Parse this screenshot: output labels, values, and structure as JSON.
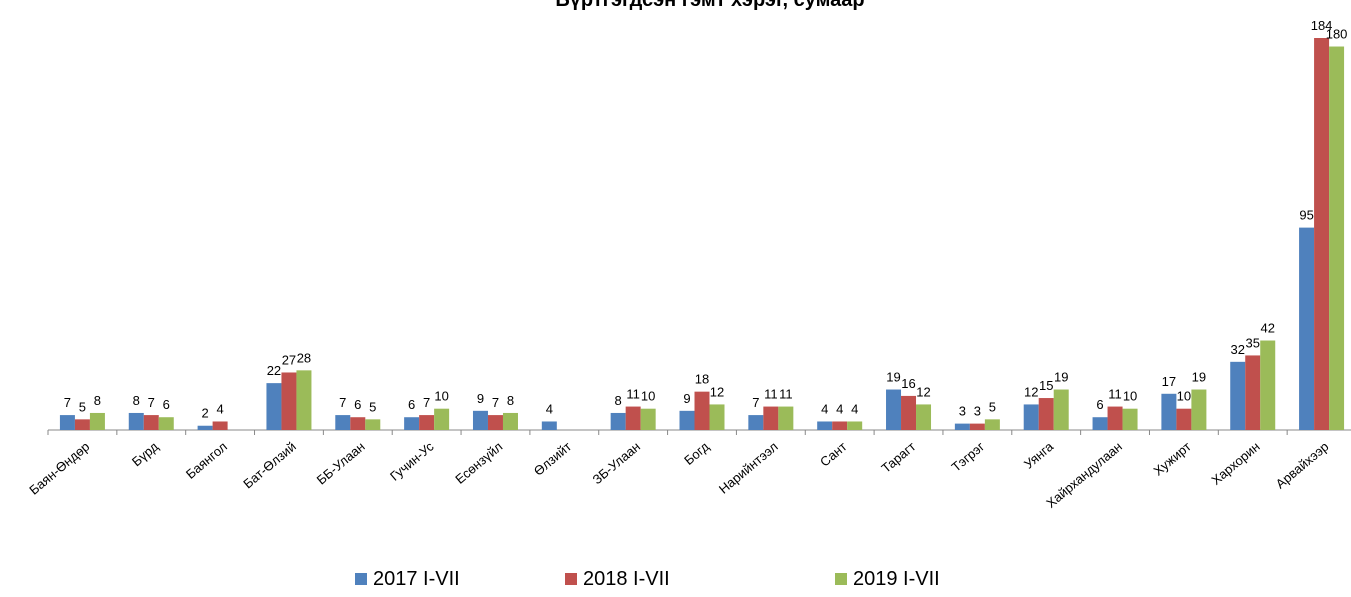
{
  "chart_data": {
    "type": "bar",
    "title": "Бүртгэгдсэн гэмт хэрэг, сумаар",
    "categories": [
      "Баян-Өндөр",
      "Бүрд",
      "Баянгол",
      "Бат-Өлзий",
      "ББ-Улаан",
      "Гучин-Ус",
      "Есөнзүйл",
      "Өлзийт",
      "ЗБ-Улаан",
      "Богд",
      "Нарийнтээл",
      "Сант",
      "Тарагт",
      "Тэгрэг",
      "Уянга",
      "Хайрхандулаан",
      "Хужирт",
      "Хархорин",
      "Арвайхээр"
    ],
    "series": [
      {
        "name": "2017 I-VII",
        "color": "#4f81bd",
        "values": [
          7,
          8,
          2,
          22,
          7,
          6,
          9,
          4,
          8,
          9,
          7,
          4,
          19,
          3,
          12,
          6,
          17,
          32,
          95
        ]
      },
      {
        "name": "2018 I-VII",
        "color": "#c0504d",
        "values": [
          5,
          7,
          4,
          27,
          6,
          7,
          7,
          null,
          11,
          18,
          11,
          4,
          16,
          3,
          15,
          11,
          10,
          35,
          184
        ]
      },
      {
        "name": "2019 I-VII",
        "color": "#9bbb59",
        "values": [
          8,
          6,
          null,
          28,
          5,
          10,
          8,
          null,
          10,
          12,
          11,
          4,
          12,
          5,
          19,
          10,
          19,
          42,
          180
        ]
      }
    ],
    "legend": "bottom"
  }
}
